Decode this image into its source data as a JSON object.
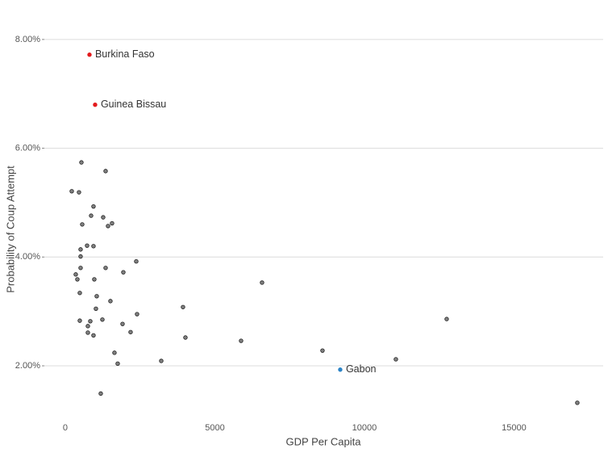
{
  "chart_data": {
    "type": "scatter",
    "x_label": "GDP Per Capita",
    "y_label": "Probability of Coup Attempt",
    "x": [
      809,
      997,
      9191,
      539,
      1348,
      216,
      458,
      943,
      863,
      1267,
      566,
      1563,
      1429,
      728,
      943,
      512,
      512,
      2372,
      512,
      1348,
      1941,
      350,
      404,
      970,
      6577,
      485,
      1051,
      1509,
      1024,
      3935,
      2399,
      12749,
      485,
      1240,
      836,
      1914,
      755,
      755,
      2183,
      943,
      4016,
      5876,
      8598,
      1644,
      1752,
      3208,
      11051,
      1186,
      17116
    ],
    "y": [
      7.72,
      6.8,
      1.93,
      5.74,
      5.58,
      5.21,
      5.19,
      4.93,
      4.76,
      4.73,
      4.6,
      4.62,
      4.57,
      4.21,
      4.2,
      4.14,
      4.01,
      3.92,
      3.8,
      3.8,
      3.72,
      3.68,
      3.59,
      3.59,
      3.53,
      3.34,
      3.28,
      3.19,
      3.05,
      3.08,
      2.95,
      2.86,
      2.83,
      2.85,
      2.82,
      2.77,
      2.73,
      2.61,
      2.62,
      2.56,
      2.52,
      2.46,
      2.28,
      2.24,
      2.04,
      2.09,
      2.12,
      1.49,
      1.32
    ],
    "labels": [
      "Burkina Faso",
      "Guinea Bissau",
      "Gabon",
      null,
      null,
      null,
      null,
      null,
      null,
      null,
      null,
      null,
      null,
      null,
      null,
      null,
      null,
      null,
      null,
      null,
      null,
      null,
      null,
      null,
      null,
      null,
      null,
      null,
      null,
      null,
      null,
      null,
      null,
      null,
      null,
      null,
      null,
      null,
      null,
      null,
      null,
      null,
      null,
      null,
      null,
      null,
      null,
      null,
      null
    ],
    "colors": [
      "#e31a1c",
      "#e31a1c",
      "#2b83c6",
      "#555555",
      "#555555",
      "#555555",
      "#555555",
      "#555555",
      "#555555",
      "#555555",
      "#555555",
      "#555555",
      "#555555",
      "#555555",
      "#555555",
      "#555555",
      "#555555",
      "#555555",
      "#555555",
      "#555555",
      "#555555",
      "#555555",
      "#555555",
      "#555555",
      "#555555",
      "#555555",
      "#555555",
      "#555555",
      "#555555",
      "#555555",
      "#555555",
      "#555555",
      "#555555",
      "#555555",
      "#555555",
      "#555555",
      "#555555",
      "#555555",
      "#555555",
      "#555555",
      "#555555",
      "#555555",
      "#555555",
      "#555555",
      "#555555",
      "#555555",
      "#555555",
      "#555555",
      "#555555"
    ],
    "xlim": [
      -700,
      17980
    ],
    "ylim": [
      1.08,
      8.28
    ],
    "xticks": [
      0,
      5000,
      10000,
      15000
    ],
    "yticks": [
      {
        "value": 2,
        "label": "2.00%"
      },
      {
        "value": 4,
        "label": "4.00%"
      },
      {
        "value": 6,
        "label": "6.00%"
      },
      {
        "value": 8,
        "label": "8.00%"
      }
    ],
    "grid": true
  }
}
